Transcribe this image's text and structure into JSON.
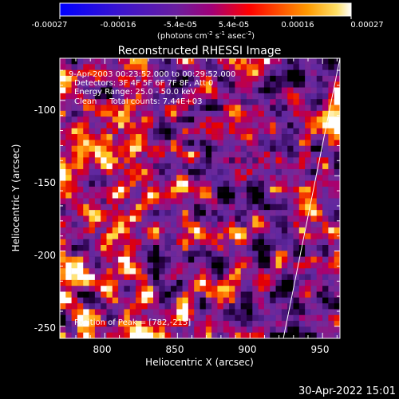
{
  "chart_data": {
    "type": "heatmap",
    "title": "Reconstructed RHESSI Image",
    "colorbar": {
      "tick_labels": [
        "-0.00027",
        "-0.00016",
        "-5.4e-05",
        "5.4e-05",
        "0.00016",
        "0.00027"
      ],
      "min": -0.00027,
      "max": 0.00027,
      "unit_line1": "(photons cm",
      "unit_sup1": "-2",
      "unit_mid1": " s",
      "unit_sup2": "-1",
      "unit_mid2": " asec",
      "unit_sup3": "-2",
      "unit_close": ")"
    },
    "xlabel": "Heliocentric X (arcsec)",
    "ylabel": "Heliocentric Y (arcsec)",
    "xlim": [
      769,
      962
    ],
    "ylim": [
      -258,
      -72
    ],
    "x_ticks": [
      800,
      850,
      900,
      950
    ],
    "y_ticks": [
      -100,
      -150,
      -200,
      -250
    ],
    "annotations": [
      "9-Apr-2003 00:23:52.000 to 00:29:52.000",
      "Detectors: 3F 4F 5F 6F 7F 8F, Att 0",
      "Energy Range: 25.0 - 50.0 keV",
      "Clean     Total counts: 7.44E+03"
    ],
    "peak_label": "Position of Peak = [782,-215]",
    "peak": [
      782,
      -215
    ],
    "limb_line": [
      [
        923,
        -258
      ],
      [
        962,
        -72
      ]
    ],
    "colormap": "black-purple-red-yellow-white"
  },
  "footer": {
    "timestamp": "30-Apr-2022 15:01"
  }
}
